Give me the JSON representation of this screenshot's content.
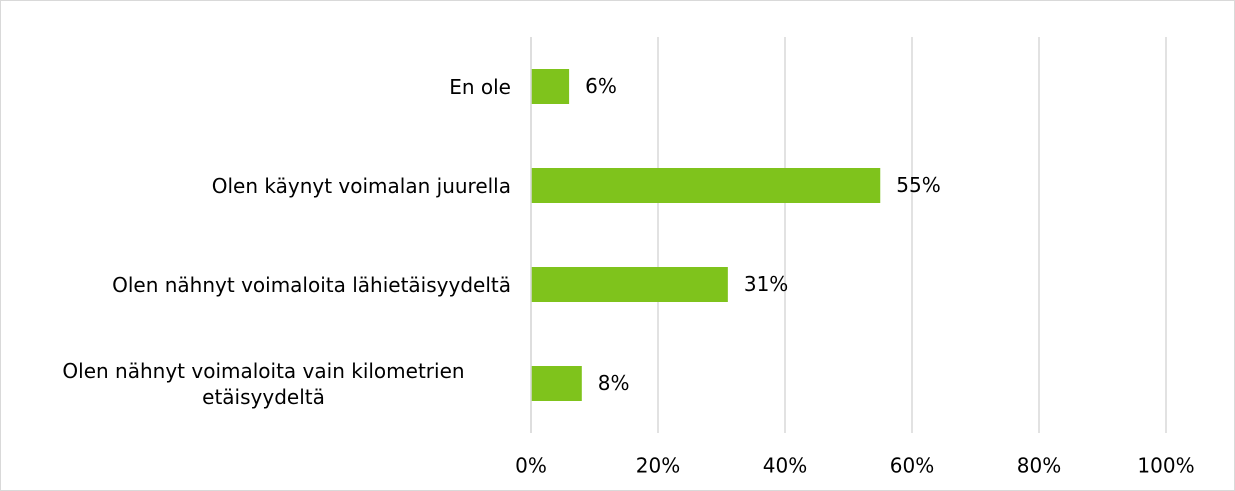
{
  "chart_data": {
    "type": "bar",
    "orientation": "horizontal",
    "categories": [
      "En ole",
      "Olen käynyt voimalan juurella",
      "Olen nähnyt voimaloita lähietäisyydeltä",
      "Olen nähnyt voimaloita vain kilometrien etäisyydeltä"
    ],
    "values": [
      6,
      55,
      31,
      8
    ],
    "value_labels": [
      "6%",
      "55%",
      "31%",
      "8%"
    ],
    "color": "#7fc31c",
    "xlim": [
      0,
      100
    ],
    "xticks": [
      {
        "value": 0,
        "label": "0%"
      },
      {
        "value": 20,
        "label": "20%"
      },
      {
        "value": 40,
        "label": "40%"
      },
      {
        "value": 60,
        "label": "60%"
      },
      {
        "value": 80,
        "label": "80%"
      },
      {
        "value": 100,
        "label": "100%"
      }
    ],
    "grid": true
  }
}
